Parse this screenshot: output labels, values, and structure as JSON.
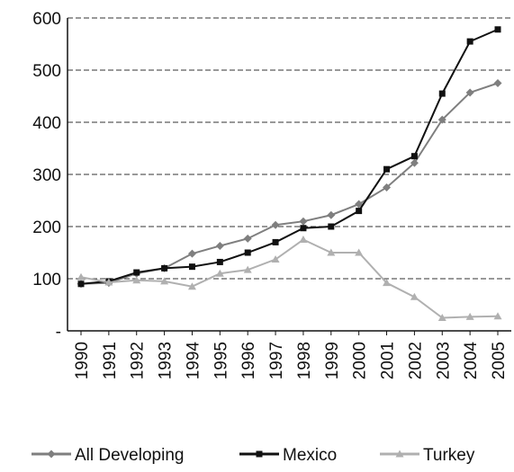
{
  "chart_data": {
    "type": "line",
    "categories": [
      "1990",
      "1991",
      "1992",
      "1993",
      "1994",
      "1995",
      "1996",
      "1997",
      "1998",
      "1999",
      "2000",
      "2001",
      "2002",
      "2003",
      "2004",
      "2005"
    ],
    "series": [
      {
        "name": "All Developing",
        "color": "#7f7f7f",
        "marker": "diamond",
        "values": [
          90,
          92,
          110,
          120,
          148,
          163,
          177,
          203,
          210,
          222,
          243,
          275,
          322,
          405,
          457,
          475
        ]
      },
      {
        "name": "Mexico",
        "color": "#111111",
        "marker": "square",
        "values": [
          90,
          95,
          112,
          120,
          123,
          132,
          150,
          170,
          197,
          200,
          230,
          310,
          335,
          455,
          555,
          578
        ]
      },
      {
        "name": "Turkey",
        "color": "#b0b0b0",
        "marker": "triangle",
        "values": [
          103,
          93,
          97,
          95,
          85,
          110,
          117,
          137,
          175,
          150,
          150,
          92,
          65,
          25,
          27,
          28
        ]
      }
    ],
    "ylim": [
      0,
      600
    ],
    "yticks": [
      {
        "value": 0,
        "label": "-"
      },
      100,
      200,
      300,
      400,
      500,
      600
    ],
    "grid": true,
    "legend": "bottom"
  }
}
